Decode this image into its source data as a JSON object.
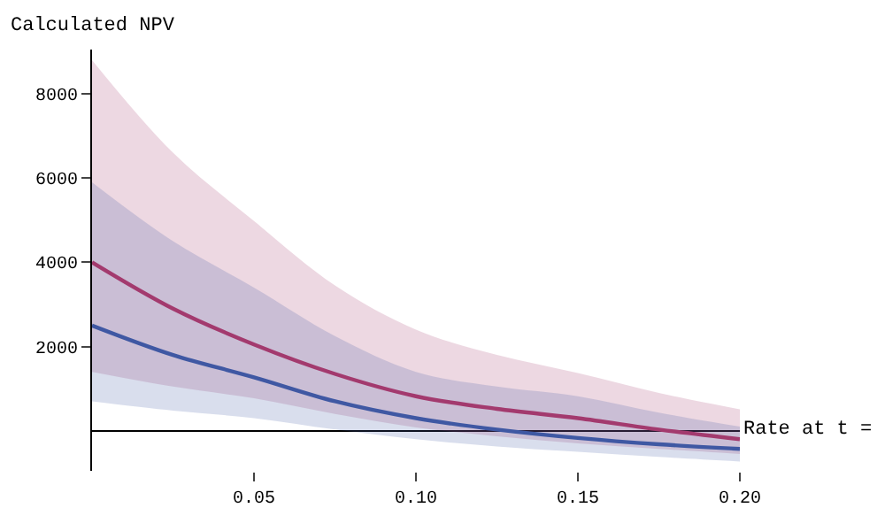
{
  "chart_data": {
    "type": "line",
    "xlabel": "Rate at t =",
    "ylabel": "Calculated NPV",
    "x": [
      0,
      0.025,
      0.05,
      0.075,
      0.1,
      0.125,
      0.15,
      0.175,
      0.2
    ],
    "series": [
      {
        "color": "#a33a6e",
        "values": [
          4000,
          2900,
          2050,
          1350,
          820,
          520,
          300,
          30,
          -200
        ],
        "lower": [
          1400,
          1050,
          770,
          400,
          80,
          -130,
          -300,
          -430,
          -550
        ],
        "upper": [
          8800,
          6600,
          4980,
          3450,
          2400,
          1800,
          1370,
          900,
          510
        ]
      },
      {
        "color": "#3f58a3",
        "values": [
          2500,
          1800,
          1270,
          700,
          300,
          30,
          -170,
          -320,
          -430
        ],
        "lower": [
          700,
          480,
          300,
          30,
          -200,
          -370,
          -500,
          -620,
          -730
        ],
        "upper": [
          5900,
          4500,
          3400,
          2250,
          1400,
          1050,
          820,
          430,
          100
        ]
      }
    ],
    "xlim": [
      0,
      0.2
    ],
    "xticks": [
      0.05,
      {
        "value": 0.1,
        "label": "0.10"
      },
      0.15,
      {
        "value": 0.2,
        "label": "0.20"
      }
    ],
    "ylim": [
      -950,
      9050
    ],
    "yticks": [
      2000,
      4000,
      6000,
      8000
    ]
  }
}
